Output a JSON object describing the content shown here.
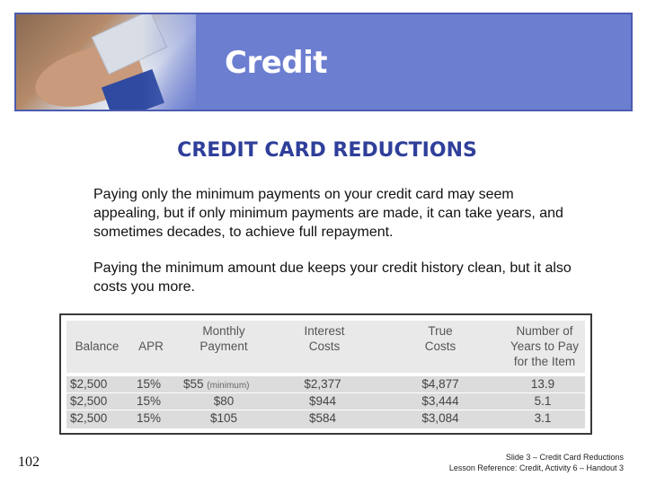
{
  "banner": {
    "title": "Credit"
  },
  "heading": "CREDIT CARD REDUCTIONS",
  "paragraphs": [
    "Paying only the minimum payments on your credit card may seem appealing, but if only minimum payments are made, it can take years, and sometimes decades, to achieve full repayment.",
    "Paying the minimum amount due keeps your credit history clean, but it also costs you more."
  ],
  "table": {
    "headers": [
      "Balance",
      "APR",
      "Monthly Payment",
      "Interest Costs",
      "True Costs",
      "Number of Years to Pay for the Item"
    ],
    "rows": [
      {
        "balance": "$2,500",
        "apr": "15%",
        "payment": "$55",
        "payment_note": "(minimum)",
        "interest": "$2,377",
        "true_cost": "$4,877",
        "years": "13.9"
      },
      {
        "balance": "$2,500",
        "apr": "15%",
        "payment": "$80",
        "payment_note": "",
        "interest": "$944",
        "true_cost": "$3,444",
        "years": "5.1"
      },
      {
        "balance": "$2,500",
        "apr": "15%",
        "payment": "$105",
        "payment_note": "",
        "interest": "$584",
        "true_cost": "$3,084",
        "years": "3.1"
      }
    ]
  },
  "footer": {
    "page_number": "102",
    "slide_line": "Slide 3 – Credit Card Reductions",
    "lesson_line": "Lesson Reference: Credit, Activity 6 – Handout 3"
  }
}
